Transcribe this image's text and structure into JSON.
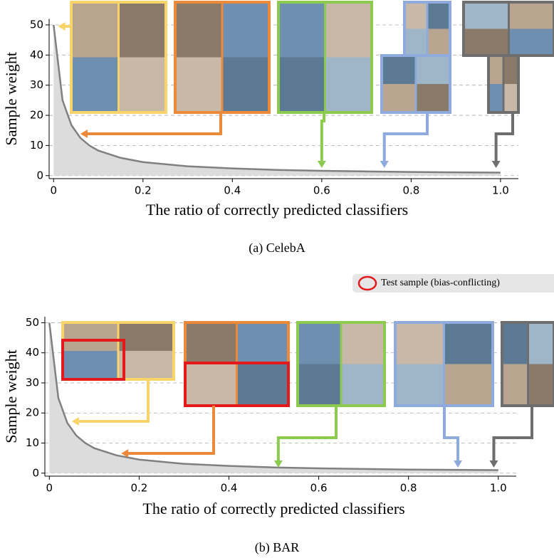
{
  "chart_data": [
    {
      "type": "area",
      "caption": "(a) CelebA",
      "xlabel": "The ratio of correctly predicted classifiers",
      "ylabel": "Sample weight",
      "x": [
        0,
        0.02,
        0.04,
        0.06,
        0.08,
        0.1,
        0.15,
        0.2,
        0.3,
        0.4,
        0.5,
        0.6,
        0.7,
        0.8,
        0.9,
        1.0
      ],
      "values": [
        50,
        25,
        16.7,
        12.5,
        10,
        8.3,
        5.9,
        4.5,
        3.1,
        2.4,
        1.9,
        1.6,
        1.4,
        1.2,
        1.1,
        1.0
      ],
      "xlim": [
        -0.01,
        1.04
      ],
      "ylim": [
        -1,
        52
      ],
      "xticks": [
        0,
        0.2,
        0.4,
        0.6,
        0.8,
        {
          "value": 1,
          "label": "1.0"
        }
      ],
      "yticks": [
        0,
        10,
        20,
        30,
        40,
        50
      ],
      "grid": true,
      "line_color": "#808080",
      "fill_color": "#dcdcdc",
      "highlights": [
        {
          "x": 0.01,
          "color": "#f9d46a"
        },
        {
          "x": 0.06,
          "color": "#ec8a3b"
        },
        {
          "x": 0.6,
          "color": "#8dcb50"
        },
        {
          "x": 0.74,
          "color": "#8faadc"
        },
        {
          "x": 0.99,
          "color": "#6e6e6e"
        }
      ]
    },
    {
      "type": "area",
      "caption": "(b) BAR",
      "xlabel": "The ratio of correctly predicted classifiers",
      "ylabel": "Sample weight",
      "x": [
        0,
        0.02,
        0.04,
        0.06,
        0.08,
        0.1,
        0.15,
        0.2,
        0.3,
        0.4,
        0.5,
        0.6,
        0.7,
        0.8,
        0.9,
        1.0
      ],
      "values": [
        50,
        25,
        16.7,
        12.5,
        10,
        8.3,
        5.9,
        4.5,
        3.1,
        2.4,
        1.9,
        1.6,
        1.4,
        1.2,
        1.1,
        1.0
      ],
      "xlim": [
        -0.01,
        1.04
      ],
      "ylim": [
        -1,
        52
      ],
      "xticks": [
        0,
        0.2,
        0.4,
        0.6,
        0.8,
        {
          "value": 1,
          "label": "1.0"
        }
      ],
      "yticks": [
        0,
        10,
        20,
        30,
        40,
        50
      ],
      "grid": true,
      "line_color": "#808080",
      "fill_color": "#dcdcdc",
      "legend": "Test sample (bias-conflicting)",
      "legend_color": "#e31a1c",
      "highlights": [
        {
          "x": 0.05,
          "color": "#f9d46a"
        },
        {
          "x": 0.16,
          "color": "#ec8a3b"
        },
        {
          "x": 0.51,
          "color": "#8dcb50"
        },
        {
          "x": 0.91,
          "color": "#8faadc"
        },
        {
          "x": 0.99,
          "color": "#6e6e6e"
        }
      ]
    }
  ]
}
